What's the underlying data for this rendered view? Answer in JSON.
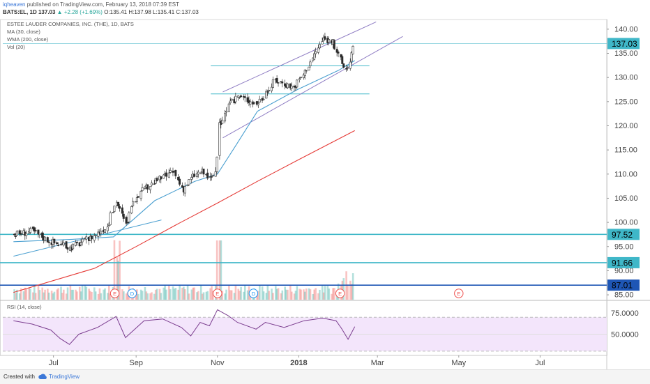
{
  "header": {
    "user": "iqheaven",
    "published": "published on TradingView.com, February 13, 2018 07:39 EST",
    "symbol_line": "BATS:EL, 1D 137.03",
    "change": "▲ +2.28 (+1.69%)",
    "ohlc": "O:135.41 H:137.98 L:135.41 C:137.03"
  },
  "legend": {
    "title": "ESTEE LAUDER COMPANIES, INC. (THE), 1D, BATS",
    "ma": "MA (30, close)",
    "wma": "WMA (200, close)",
    "vol": "Vol (20)",
    "rsi": "RSI (14, close)"
  },
  "footer": {
    "created": "Created with",
    "brand": "TradingView"
  },
  "colors": {
    "up": "#26a69a",
    "down": "#ef5350",
    "candle": "#2b2b2b",
    "ma": "#4a9fd0",
    "wma": "#e53935",
    "channel": "#8e7cc3",
    "hline_teal": "#3fb7c8",
    "hline_blue": "#1e56b5",
    "last_price_box": "#3fb7c8",
    "rsi_line": "#7b3d8f",
    "rsi_band": "#f3e5fb"
  },
  "chart_data": [
    {
      "type": "candlestick",
      "title": "ESTEE LAUDER COMPANIES, INC. (THE), 1D, BATS",
      "x_ticks": [
        "Jul",
        "Sep",
        "Nov",
        "2018",
        "Mar",
        "May",
        "Jul"
      ],
      "y_ticks": [
        "140.00",
        "135.00",
        "130.00",
        "125.00",
        "120.00",
        "115.00",
        "110.00",
        "105.00",
        "100.00",
        "95.00",
        "90.00",
        "85.00"
      ],
      "ylim": [
        84,
        142
      ],
      "price_labels": [
        {
          "value": 137.03,
          "text": "137.03",
          "color": "#3fb7c8"
        },
        {
          "value": 97.52,
          "text": "97.52",
          "color": "#3fb7c8"
        },
        {
          "value": 91.66,
          "text": "91.66",
          "color": "#3fb7c8"
        },
        {
          "value": 87.01,
          "text": "87.01",
          "color": "#1e56b5"
        }
      ],
      "horizontal_lines": [
        {
          "value": 97.52,
          "color": "#3fb7c8"
        },
        {
          "value": 91.66,
          "color": "#3fb7c8"
        },
        {
          "value": 87.01,
          "color": "#1e56b5"
        }
      ],
      "level_segments": [
        {
          "value": 132.4,
          "from": "2017-10-27",
          "to": "2018-02-23"
        },
        {
          "value": 126.6,
          "from": "2017-10-27",
          "to": "2018-02-23"
        }
      ],
      "close_points": [
        [
          "2017-06-01",
          97.5
        ],
        [
          "2017-06-15",
          98.2
        ],
        [
          "2017-06-29",
          96.0
        ],
        [
          "2017-07-13",
          94.8
        ],
        [
          "2017-07-27",
          96.5
        ],
        [
          "2017-08-10",
          99.2
        ],
        [
          "2017-08-17",
          104.5
        ],
        [
          "2017-08-24",
          99.5
        ],
        [
          "2017-09-01",
          105.5
        ],
        [
          "2017-09-15",
          108.5
        ],
        [
          "2017-09-29",
          110.5
        ],
        [
          "2017-10-06",
          106.8
        ],
        [
          "2017-10-13",
          109.5
        ],
        [
          "2017-10-20",
          110.6
        ],
        [
          "2017-10-27",
          108.8
        ],
        [
          "2017-10-31",
          111.0
        ],
        [
          "2017-11-02",
          120.0
        ],
        [
          "2017-11-09",
          124.0
        ],
        [
          "2017-11-16",
          126.2
        ],
        [
          "2017-11-30",
          124.6
        ],
        [
          "2017-12-07",
          126.5
        ],
        [
          "2017-12-14",
          129.5
        ],
        [
          "2017-12-28",
          128.0
        ],
        [
          "2018-01-05",
          131.0
        ],
        [
          "2018-01-12",
          134.5
        ],
        [
          "2018-01-19",
          138.0
        ],
        [
          "2018-01-26",
          137.5
        ],
        [
          "2018-02-02",
          133.0
        ],
        [
          "2018-02-06",
          131.5
        ],
        [
          "2018-02-09",
          134.8
        ],
        [
          "2018-02-12",
          137.03
        ]
      ],
      "series": [
        {
          "name": "MA (30, close)",
          "color": "#4a9fd0",
          "points": [
            [
              "2017-06-01",
              96.0
            ],
            [
              "2017-07-15",
              96.5
            ],
            [
              "2017-08-15",
              97.0
            ],
            [
              "2017-09-15",
              104.5
            ],
            [
              "2017-10-15",
              108.5
            ],
            [
              "2017-11-01",
              110.0
            ],
            [
              "2017-11-15",
              116.0
            ],
            [
              "2017-12-01",
              123.0
            ],
            [
              "2017-12-31",
              127.5
            ],
            [
              "2018-01-31",
              131.5
            ],
            [
              "2018-02-12",
              133.5
            ]
          ]
        },
        {
          "name": "WMA (200, close)",
          "color": "#e53935",
          "points": [
            [
              "2017-06-01",
              85.5
            ],
            [
              "2017-08-01",
              90.5
            ],
            [
              "2017-09-01",
              95.0
            ],
            [
              "2017-10-01",
              99.5
            ],
            [
              "2017-11-01",
              104.0
            ],
            [
              "2017-12-01",
              108.5
            ],
            [
              "2018-01-01",
              113.0
            ],
            [
              "2018-02-12",
              119.0
            ]
          ]
        }
      ],
      "trend_lines": [
        {
          "name": "channel-upper",
          "points": [
            [
              "2017-11-05",
              127.0
            ],
            [
              "2018-02-28",
              141.5
            ]
          ]
        },
        {
          "name": "channel-lower",
          "points": [
            [
              "2017-11-05",
              117.5
            ],
            [
              "2018-03-20",
              138.5
            ]
          ]
        },
        {
          "name": "support",
          "points": [
            [
              "2017-06-01",
              93.0
            ],
            [
              "2017-09-20",
              100.5
            ]
          ]
        }
      ],
      "event_markers": [
        {
          "label": "E",
          "date": "2017-08-16",
          "color": "#ef5350"
        },
        {
          "label": "D",
          "date": "2017-08-29",
          "color": "#2196f3"
        },
        {
          "label": "E",
          "date": "2017-11-01",
          "color": "#ef5350"
        },
        {
          "label": "D",
          "date": "2017-11-28",
          "color": "#2196f3"
        },
        {
          "label": "E",
          "date": "2018-02-01",
          "color": "#ef5350"
        },
        {
          "label": "E",
          "date": "2018-05-01",
          "color": "#ef5350"
        }
      ]
    },
    {
      "type": "line",
      "title": "RSI (14, close)",
      "y_ticks": [
        "75.0000",
        "50.0000"
      ],
      "ylim": [
        25,
        90
      ],
      "band": [
        30,
        70
      ],
      "points": [
        [
          "2017-06-01",
          66
        ],
        [
          "2017-06-15",
          62
        ],
        [
          "2017-06-29",
          55
        ],
        [
          "2017-07-06",
          45
        ],
        [
          "2017-07-13",
          38
        ],
        [
          "2017-07-20",
          50
        ],
        [
          "2017-08-03",
          58
        ],
        [
          "2017-08-17",
          71
        ],
        [
          "2017-08-24",
          46
        ],
        [
          "2017-09-07",
          66
        ],
        [
          "2017-09-21",
          68
        ],
        [
          "2017-10-05",
          58
        ],
        [
          "2017-10-12",
          48
        ],
        [
          "2017-10-19",
          64
        ],
        [
          "2017-10-26",
          60
        ],
        [
          "2017-11-01",
          79
        ],
        [
          "2017-11-09",
          72
        ],
        [
          "2017-11-16",
          64
        ],
        [
          "2017-11-30",
          56
        ],
        [
          "2017-12-07",
          64
        ],
        [
          "2017-12-21",
          58
        ],
        [
          "2018-01-05",
          66
        ],
        [
          "2018-01-19",
          69
        ],
        [
          "2018-01-29",
          66
        ],
        [
          "2018-02-02",
          57
        ],
        [
          "2018-02-07",
          44
        ],
        [
          "2018-02-12",
          59
        ]
      ]
    }
  ]
}
